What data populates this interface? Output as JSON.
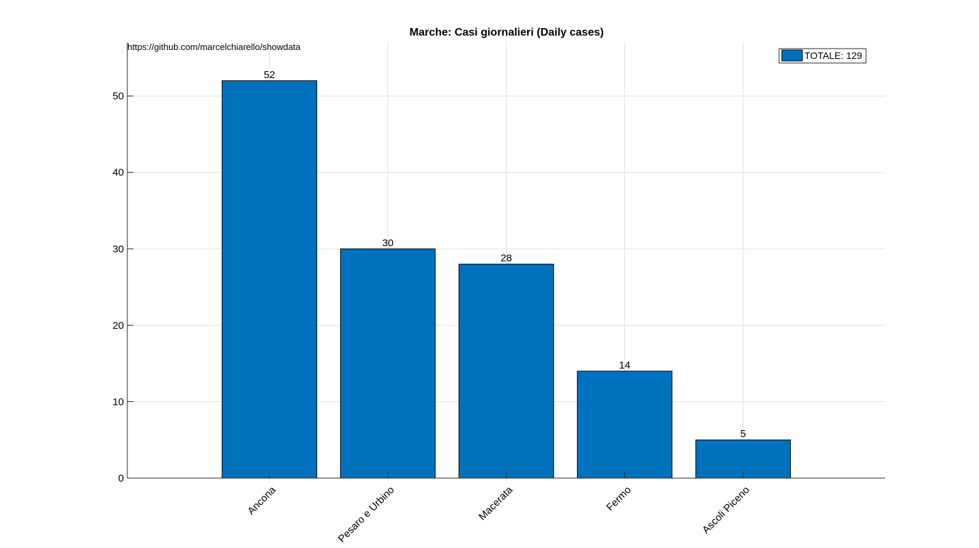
{
  "chart_data": {
    "type": "bar",
    "title": "Marche: Casi giornalieri (Daily cases)",
    "annotation": "https://github.com/marcelchiarello/showdata",
    "categories": [
      "Ancona",
      "Pesaro e Urbino",
      "Macerata",
      "Fermo",
      "Ascoli Piceno"
    ],
    "values": [
      52,
      30,
      28,
      14,
      5
    ],
    "data_labels": [
      "52",
      "30",
      "28",
      "14",
      "5"
    ],
    "xlabel": "",
    "ylabel": "",
    "ylim": [
      0,
      57
    ],
    "yticks": [
      0,
      10,
      20,
      30,
      40,
      50
    ],
    "ytick_labels": [
      "0",
      "10",
      "20",
      "30",
      "40",
      "50"
    ],
    "grid": true,
    "legend": {
      "placement": "top-right",
      "entries": [
        {
          "label": "TOTALE: 129",
          "color": "#0072BD"
        }
      ]
    },
    "bar_color": "#0072BD"
  }
}
